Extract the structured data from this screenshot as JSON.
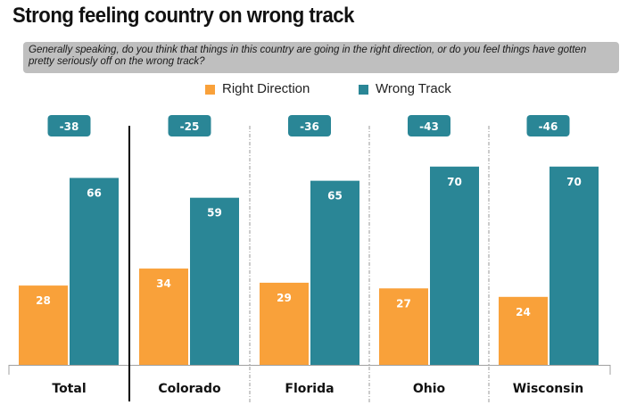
{
  "header": {
    "title": "Strong feeling country on wrong track",
    "question": "Generally speaking, do you think that things in this country are going in the right direction, or do you feel things have gotten pretty seriously off on the wrong track?"
  },
  "colors": {
    "right_direction": "#f9a13a",
    "wrong_track": "#2a8696",
    "badge": "#2a8696",
    "question_bg": "#bfbfbf"
  },
  "legend": [
    {
      "label": "Right Direction",
      "color_key": "right_direction"
    },
    {
      "label": "Wrong Track",
      "color_key": "wrong_track"
    }
  ],
  "chart_data": {
    "type": "bar",
    "title": "Strong feeling country on wrong track",
    "categories": [
      "Total",
      "Colorado",
      "Florida",
      "Ohio",
      "Wisconsin"
    ],
    "series": [
      {
        "name": "Right Direction",
        "values": [
          28,
          34,
          29,
          27,
          24
        ]
      },
      {
        "name": "Wrong Track",
        "values": [
          66,
          59,
          65,
          70,
          70
        ]
      }
    ],
    "differences": [
      "-38",
      "-25",
      "-36",
      "-43",
      "-46"
    ],
    "xlabel": "",
    "ylabel": "",
    "ylim": [
      0,
      80
    ],
    "grid": false,
    "legend_position": "top-center"
  }
}
